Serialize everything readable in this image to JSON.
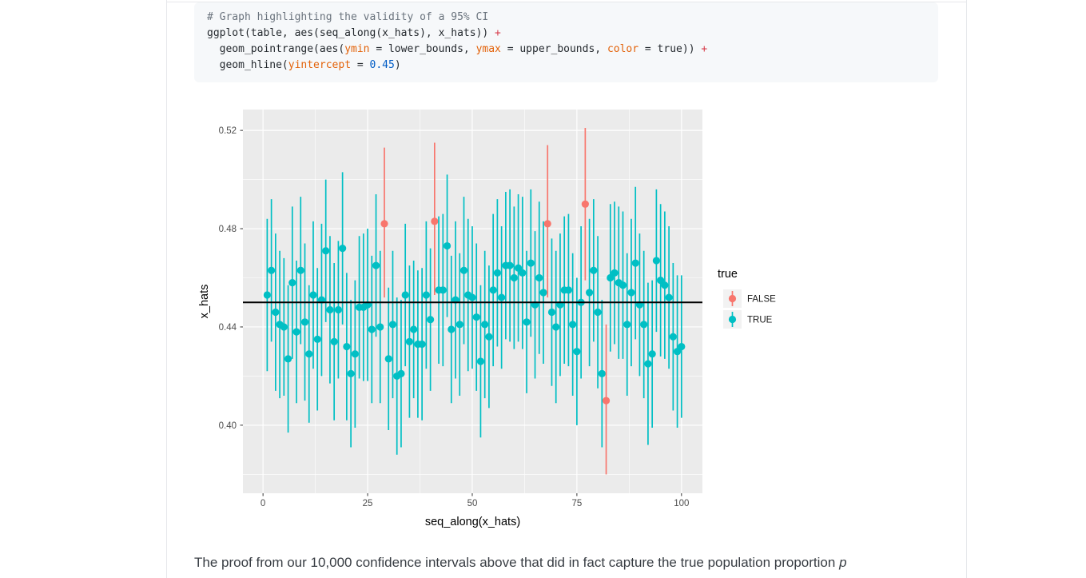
{
  "page": {
    "paragraph_text": "The proof from our 10,000 confidence intervals above that did in fact capture the true population proportion ",
    "paragraph_italic_term": "p"
  },
  "code_block": {
    "language": "r",
    "syntax_colors": {
      "comment": "#6a737d",
      "plain": "#24292e",
      "param": "#e36209",
      "op": "#d73a49",
      "num": "#005cc5"
    },
    "background": "#f6f8fa",
    "lines": [
      [
        [
          "# Graph highlighting the validity of a 95% CI",
          "comment"
        ]
      ],
      [
        [
          "ggplot(table, aes(seq_along(x_hats), x_hats)) ",
          "plain"
        ],
        [
          "+",
          "op"
        ]
      ],
      [
        [
          "  geom_pointrange(aes(",
          "plain"
        ],
        [
          "ymin",
          "param"
        ],
        [
          " = lower_bounds, ",
          "plain"
        ],
        [
          "ymax",
          "param"
        ],
        [
          " = upper_bounds, ",
          "plain"
        ],
        [
          "color",
          "param"
        ],
        [
          " = true)) ",
          "plain"
        ],
        [
          "+",
          "op"
        ]
      ],
      [
        [
          "  geom_hline(",
          "plain"
        ],
        [
          "yintercept",
          "param"
        ],
        [
          " = ",
          "plain"
        ],
        [
          "0.45",
          "num"
        ],
        [
          ")",
          "plain"
        ]
      ]
    ]
  },
  "chart_data": {
    "type": "pointrange",
    "title": "",
    "xlabel": "seq_along(x_hats)",
    "ylabel": "x_hats",
    "x_ticks": [
      0,
      25,
      50,
      75,
      100
    ],
    "x_minor_ticks": [
      12.5,
      37.5,
      62.5,
      87.5
    ],
    "y_ticks": [
      {
        "v": 0.4,
        "label": "0.40"
      },
      {
        "v": 0.44,
        "label": "0.44"
      },
      {
        "v": 0.48,
        "label": "0.48"
      },
      {
        "v": 0.52,
        "label": "0.52"
      }
    ],
    "y_minor_ticks": [
      0.38,
      0.42,
      0.46,
      0.5
    ],
    "xlim": [
      -4.8,
      105
    ],
    "ylim": [
      0.3723,
      0.5285
    ],
    "hline_yintercept": 0.45,
    "grid": true,
    "legend": {
      "title": "true",
      "position": "right",
      "entries": [
        {
          "label": "FALSE",
          "color": "#F8766D"
        },
        {
          "label": "TRUE",
          "color": "#00BFC4"
        }
      ]
    },
    "colors": {
      "true_color": "#00BFC4",
      "false_color": "#F8766D",
      "panel": "#EBEBEB",
      "grid": "#FFFFFF",
      "hline": "#000000",
      "tick_label": "#4d4d4d",
      "axis_title": "#000000",
      "legend_key_bg": "#f2f2f2"
    },
    "points_format": [
      "seq_index",
      "x_hat",
      "lower_bound",
      "upper_bound",
      "captured_true"
    ],
    "points": [
      [
        1,
        0.453,
        0.422,
        0.484,
        "TRUE"
      ],
      [
        2,
        0.463,
        0.434,
        0.492,
        "TRUE"
      ],
      [
        3,
        0.446,
        0.414,
        0.478,
        "TRUE"
      ],
      [
        4,
        0.441,
        0.411,
        0.471,
        "TRUE"
      ],
      [
        5,
        0.44,
        0.412,
        0.468,
        "TRUE"
      ],
      [
        6,
        0.427,
        0.397,
        0.457,
        "TRUE"
      ],
      [
        7,
        0.458,
        0.427,
        0.489,
        "TRUE"
      ],
      [
        8,
        0.438,
        0.409,
        0.467,
        "TRUE"
      ],
      [
        9,
        0.463,
        0.433,
        0.493,
        "TRUE"
      ],
      [
        10,
        0.442,
        0.41,
        0.474,
        "TRUE"
      ],
      [
        11,
        0.429,
        0.401,
        0.457,
        "TRUE"
      ],
      [
        12,
        0.453,
        0.423,
        0.483,
        "TRUE"
      ],
      [
        13,
        0.435,
        0.406,
        0.464,
        "TRUE"
      ],
      [
        14,
        0.451,
        0.42,
        0.482,
        "TRUE"
      ],
      [
        15,
        0.471,
        0.442,
        0.5,
        "TRUE"
      ],
      [
        16,
        0.447,
        0.417,
        0.477,
        "TRUE"
      ],
      [
        17,
        0.434,
        0.402,
        0.466,
        "TRUE"
      ],
      [
        18,
        0.447,
        0.419,
        0.475,
        "TRUE"
      ],
      [
        19,
        0.472,
        0.441,
        0.503,
        "TRUE"
      ],
      [
        20,
        0.432,
        0.402,
        0.462,
        "TRUE"
      ],
      [
        21,
        0.421,
        0.391,
        0.451,
        "TRUE"
      ],
      [
        22,
        0.429,
        0.399,
        0.459,
        "TRUE"
      ],
      [
        23,
        0.448,
        0.419,
        0.477,
        "TRUE"
      ],
      [
        24,
        0.448,
        0.418,
        0.478,
        "TRUE"
      ],
      [
        25,
        0.449,
        0.418,
        0.48,
        "TRUE"
      ],
      [
        26,
        0.439,
        0.409,
        0.469,
        "TRUE"
      ],
      [
        27,
        0.465,
        0.436,
        0.494,
        "TRUE"
      ],
      [
        28,
        0.44,
        0.409,
        0.471,
        "TRUE"
      ],
      [
        29,
        0.482,
        0.452,
        0.513,
        "FALSE"
      ],
      [
        30,
        0.427,
        0.398,
        0.456,
        "TRUE"
      ],
      [
        31,
        0.441,
        0.411,
        0.471,
        "TRUE"
      ],
      [
        32,
        0.42,
        0.388,
        0.452,
        "TRUE"
      ],
      [
        33,
        0.421,
        0.391,
        0.451,
        "TRUE"
      ],
      [
        34,
        0.453,
        0.424,
        0.482,
        "TRUE"
      ],
      [
        35,
        0.434,
        0.403,
        0.465,
        "TRUE"
      ],
      [
        36,
        0.439,
        0.411,
        0.467,
        "TRUE"
      ],
      [
        37,
        0.433,
        0.403,
        0.463,
        "TRUE"
      ],
      [
        38,
        0.433,
        0.402,
        0.464,
        "TRUE"
      ],
      [
        39,
        0.453,
        0.423,
        0.483,
        "TRUE"
      ],
      [
        40,
        0.443,
        0.414,
        0.472,
        "TRUE"
      ],
      [
        41,
        0.483,
        0.453,
        0.515,
        "FALSE"
      ],
      [
        42,
        0.455,
        0.425,
        0.485,
        "TRUE"
      ],
      [
        43,
        0.455,
        0.424,
        0.486,
        "TRUE"
      ],
      [
        44,
        0.473,
        0.444,
        0.502,
        "TRUE"
      ],
      [
        45,
        0.439,
        0.409,
        0.469,
        "TRUE"
      ],
      [
        46,
        0.451,
        0.419,
        0.483,
        "TRUE"
      ],
      [
        47,
        0.441,
        0.412,
        0.47,
        "TRUE"
      ],
      [
        48,
        0.463,
        0.433,
        0.493,
        "TRUE"
      ],
      [
        49,
        0.453,
        0.422,
        0.484,
        "TRUE"
      ],
      [
        50,
        0.452,
        0.423,
        0.481,
        "TRUE"
      ],
      [
        51,
        0.444,
        0.414,
        0.474,
        "TRUE"
      ],
      [
        52,
        0.426,
        0.395,
        0.457,
        "TRUE"
      ],
      [
        53,
        0.441,
        0.411,
        0.471,
        "TRUE"
      ],
      [
        54,
        0.436,
        0.407,
        0.465,
        "TRUE"
      ],
      [
        55,
        0.455,
        0.424,
        0.486,
        "TRUE"
      ],
      [
        56,
        0.462,
        0.432,
        0.492,
        "TRUE"
      ],
      [
        57,
        0.452,
        0.423,
        0.481,
        "TRUE"
      ],
      [
        58,
        0.465,
        0.435,
        0.495,
        "TRUE"
      ],
      [
        59,
        0.465,
        0.434,
        0.496,
        "TRUE"
      ],
      [
        60,
        0.46,
        0.431,
        0.489,
        "TRUE"
      ],
      [
        61,
        0.464,
        0.434,
        0.494,
        "TRUE"
      ],
      [
        62,
        0.462,
        0.431,
        0.493,
        "TRUE"
      ],
      [
        63,
        0.442,
        0.413,
        0.471,
        "TRUE"
      ],
      [
        64,
        0.466,
        0.436,
        0.496,
        "TRUE"
      ],
      [
        65,
        0.449,
        0.419,
        0.479,
        "TRUE"
      ],
      [
        66,
        0.46,
        0.429,
        0.491,
        "TRUE"
      ],
      [
        67,
        0.454,
        0.425,
        0.483,
        "TRUE"
      ],
      [
        68,
        0.482,
        0.452,
        0.514,
        "FALSE"
      ],
      [
        69,
        0.446,
        0.416,
        0.476,
        "TRUE"
      ],
      [
        70,
        0.44,
        0.409,
        0.471,
        "TRUE"
      ],
      [
        71,
        0.449,
        0.42,
        0.478,
        "TRUE"
      ],
      [
        72,
        0.455,
        0.425,
        0.485,
        "TRUE"
      ],
      [
        73,
        0.455,
        0.424,
        0.486,
        "TRUE"
      ],
      [
        74,
        0.441,
        0.412,
        0.47,
        "TRUE"
      ],
      [
        75,
        0.43,
        0.4,
        0.46,
        "TRUE"
      ],
      [
        76,
        0.45,
        0.419,
        0.481,
        "TRUE"
      ],
      [
        77,
        0.49,
        0.459,
        0.521,
        "FALSE"
      ],
      [
        78,
        0.454,
        0.424,
        0.484,
        "TRUE"
      ],
      [
        79,
        0.463,
        0.434,
        0.492,
        "TRUE"
      ],
      [
        80,
        0.446,
        0.415,
        0.477,
        "TRUE"
      ],
      [
        81,
        0.421,
        0.391,
        0.451,
        "TRUE"
      ],
      [
        82,
        0.41,
        0.38,
        0.441,
        "FALSE"
      ],
      [
        83,
        0.46,
        0.43,
        0.49,
        "TRUE"
      ],
      [
        84,
        0.462,
        0.433,
        0.491,
        "TRUE"
      ],
      [
        85,
        0.458,
        0.427,
        0.489,
        "TRUE"
      ],
      [
        86,
        0.457,
        0.427,
        0.487,
        "TRUE"
      ],
      [
        87,
        0.441,
        0.412,
        0.47,
        "TRUE"
      ],
      [
        88,
        0.454,
        0.424,
        0.484,
        "TRUE"
      ],
      [
        89,
        0.466,
        0.435,
        0.497,
        "TRUE"
      ],
      [
        90,
        0.449,
        0.42,
        0.478,
        "TRUE"
      ],
      [
        91,
        0.441,
        0.411,
        0.471,
        "TRUE"
      ],
      [
        92,
        0.425,
        0.392,
        0.458,
        "TRUE"
      ],
      [
        93,
        0.429,
        0.399,
        0.459,
        "TRUE"
      ],
      [
        94,
        0.467,
        0.438,
        0.496,
        "TRUE"
      ],
      [
        95,
        0.459,
        0.428,
        0.49,
        "TRUE"
      ],
      [
        96,
        0.457,
        0.427,
        0.487,
        "TRUE"
      ],
      [
        97,
        0.452,
        0.423,
        0.481,
        "TRUE"
      ],
      [
        98,
        0.436,
        0.406,
        0.466,
        "TRUE"
      ],
      [
        99,
        0.43,
        0.399,
        0.461,
        "TRUE"
      ],
      [
        100,
        0.432,
        0.403,
        0.461,
        "TRUE"
      ]
    ]
  }
}
